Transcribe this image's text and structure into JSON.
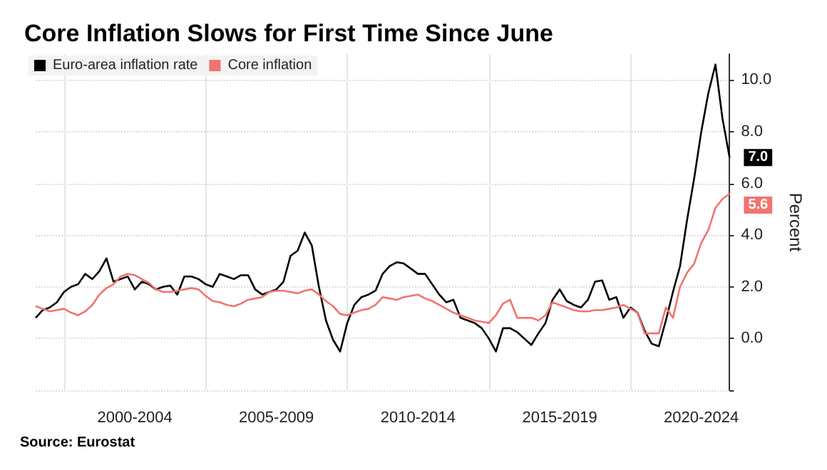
{
  "chart_data": {
    "type": "line",
    "title": "Core Inflation Slows for First Time Since June",
    "ylabel": "Percent",
    "annotations": [
      "Source: Eurostat"
    ],
    "categories": [
      null,
      null,
      null,
      null,
      null,
      null,
      null,
      null,
      null,
      null,
      null,
      null,
      null,
      null,
      "2000-2004",
      null,
      null,
      null,
      null,
      null,
      null,
      null,
      null,
      null,
      null,
      null,
      null,
      null,
      null,
      null,
      null,
      null,
      null,
      null,
      "2005-2009",
      null,
      null,
      null,
      null,
      null,
      null,
      null,
      null,
      null,
      null,
      null,
      null,
      null,
      null,
      null,
      null,
      null,
      null,
      null,
      "2010-2014",
      null,
      null,
      null,
      null,
      null,
      null,
      null,
      null,
      null,
      null,
      null,
      null,
      null,
      null,
      null,
      null,
      null,
      null,
      null,
      "2015-2019",
      null,
      null,
      null,
      null,
      null,
      null,
      null,
      null,
      null,
      null,
      null,
      null,
      null,
      null,
      null,
      null,
      null,
      null,
      null,
      "2020-2024",
      null,
      null,
      null,
      null
    ],
    "ylim": [
      -2,
      11
    ],
    "yticks": [
      {
        "value": -2,
        "label": null
      },
      {
        "value": 0,
        "label": "0.0"
      },
      {
        "value": 2,
        "label": "2.0"
      },
      {
        "value": 4,
        "label": "4.0"
      },
      {
        "value": 6,
        "label": "6.0"
      },
      {
        "value": 8,
        "label": "8.0"
      },
      {
        "value": 10,
        "label": "10.0"
      }
    ],
    "grid": true,
    "legend": "top left",
    "marker": "none",
    "line_style": "solid",
    "series": [
      {
        "name": "Euro-area inflation rate",
        "color": "#000000",
        "values": [
          0.8,
          1.1,
          1.2,
          1.4,
          1.8,
          2.0,
          2.1,
          2.5,
          2.3,
          2.6,
          3.1,
          2.2,
          2.3,
          2.4,
          1.9,
          2.2,
          2.1,
          1.9,
          2.0,
          2.05,
          1.7,
          2.4,
          2.4,
          2.3,
          2.1,
          2.0,
          2.5,
          2.4,
          2.3,
          2.45,
          2.45,
          1.9,
          1.7,
          1.8,
          1.9,
          2.2,
          3.2,
          3.4,
          4.1,
          3.6,
          2.0,
          0.7,
          -0.05,
          -0.5,
          0.6,
          1.3,
          1.6,
          1.7,
          1.85,
          2.5,
          2.8,
          2.95,
          2.9,
          2.7,
          2.5,
          2.5,
          2.1,
          1.7,
          1.4,
          1.5,
          0.8,
          0.7,
          0.6,
          0.4,
          0.0,
          -0.5,
          0.4,
          0.4,
          0.25,
          0.0,
          -0.25,
          0.2,
          0.6,
          1.5,
          1.9,
          1.45,
          1.3,
          1.2,
          1.5,
          2.2,
          2.25,
          1.5,
          1.6,
          0.8,
          1.2,
          1.0,
          0.3,
          -0.2,
          -0.3,
          0.7,
          1.8,
          2.8,
          4.6,
          6.2,
          8.0,
          9.5,
          10.6,
          8.5,
          7.0
        ],
        "value_labels": [
          null,
          null,
          null,
          null,
          null,
          null,
          null,
          null,
          null,
          null,
          null,
          null,
          null,
          null,
          null,
          null,
          null,
          null,
          null,
          null,
          null,
          null,
          null,
          null,
          null,
          null,
          null,
          null,
          null,
          null,
          null,
          null,
          null,
          null,
          null,
          null,
          null,
          null,
          null,
          null,
          null,
          null,
          null,
          null,
          null,
          null,
          null,
          null,
          null,
          null,
          null,
          null,
          null,
          null,
          null,
          null,
          null,
          null,
          null,
          null,
          null,
          null,
          null,
          null,
          null,
          null,
          null,
          null,
          null,
          null,
          null,
          null,
          null,
          null,
          null,
          null,
          null,
          null,
          null,
          null,
          null,
          null,
          null,
          null,
          null,
          null,
          null,
          null,
          null,
          null,
          null,
          null,
          null,
          null,
          null,
          null,
          null,
          null,
          "7.0"
        ]
      },
      {
        "name": "Core inflation",
        "color": "#f07470",
        "values": [
          1.25,
          1.15,
          1.05,
          1.1,
          1.15,
          1.0,
          0.9,
          1.05,
          1.3,
          1.7,
          1.95,
          2.1,
          2.4,
          2.5,
          2.45,
          2.3,
          2.15,
          1.9,
          1.8,
          1.8,
          1.85,
          1.9,
          1.95,
          1.9,
          1.65,
          1.45,
          1.4,
          1.3,
          1.25,
          1.35,
          1.5,
          1.55,
          1.6,
          1.8,
          1.85,
          1.85,
          1.8,
          1.75,
          1.85,
          1.9,
          1.7,
          1.45,
          1.25,
          0.95,
          0.9,
          1.0,
          1.1,
          1.15,
          1.3,
          1.6,
          1.55,
          1.5,
          1.6,
          1.65,
          1.7,
          1.55,
          1.45,
          1.3,
          1.15,
          1.0,
          0.9,
          0.8,
          0.7,
          0.65,
          0.6,
          0.9,
          1.35,
          1.5,
          0.8,
          0.8,
          0.8,
          0.7,
          0.9,
          1.4,
          1.3,
          1.2,
          1.1,
          1.05,
          1.05,
          1.1,
          1.1,
          1.15,
          1.2,
          1.3,
          1.15,
          1.0,
          0.2,
          0.2,
          0.2,
          1.2,
          0.8,
          2.0,
          2.55,
          2.9,
          3.7,
          4.2,
          5.05,
          5.4,
          5.6
        ],
        "value_labels": [
          null,
          null,
          null,
          null,
          null,
          null,
          null,
          null,
          null,
          null,
          null,
          null,
          null,
          null,
          null,
          null,
          null,
          null,
          null,
          null,
          null,
          null,
          null,
          null,
          null,
          null,
          null,
          null,
          null,
          null,
          null,
          null,
          null,
          null,
          null,
          null,
          null,
          null,
          null,
          null,
          null,
          null,
          null,
          null,
          null,
          null,
          null,
          null,
          null,
          null,
          null,
          null,
          null,
          null,
          null,
          null,
          null,
          null,
          null,
          null,
          null,
          null,
          null,
          null,
          null,
          null,
          null,
          null,
          null,
          null,
          null,
          null,
          null,
          null,
          null,
          null,
          null,
          null,
          null,
          null,
          null,
          null,
          null,
          null,
          null,
          null,
          null,
          null,
          null,
          null,
          null,
          null,
          null,
          null,
          null,
          null,
          null,
          null,
          "5.6"
        ]
      }
    ]
  }
}
